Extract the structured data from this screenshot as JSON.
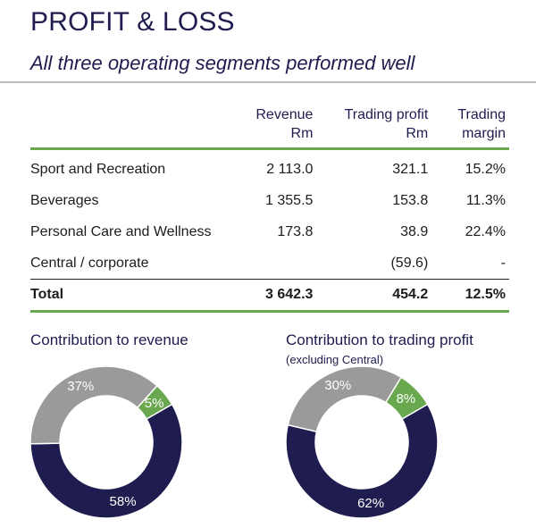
{
  "header": {
    "title": "PROFIT & LOSS",
    "subtitle": "All three operating segments performed well"
  },
  "table": {
    "columns": [
      "",
      "Revenue\nRm",
      "Trading profit\nRm",
      "Trading\nmargin"
    ],
    "rows": [
      {
        "segment": "Sport and Recreation",
        "revenue": "2 113.0",
        "profit": "321.1",
        "margin": "15.2%"
      },
      {
        "segment": "Beverages",
        "revenue": "1 355.5",
        "profit": "153.8",
        "margin": "11.3%"
      },
      {
        "segment": "Personal Care and Wellness",
        "revenue": "173.8",
        "profit": "38.9",
        "margin": "22.4%"
      },
      {
        "segment": "Central / corporate",
        "revenue": "",
        "profit": "(59.6)",
        "margin": "-"
      }
    ],
    "total": {
      "segment": "Total",
      "revenue": "3 642.3",
      "profit": "454.2",
      "margin": "12.5%"
    }
  },
  "chart_data": [
    {
      "type": "pie",
      "title": "Contribution to revenue",
      "subtitle": "",
      "slices": [
        {
          "label": "58%",
          "value": 58,
          "color": "#1f1c4f"
        },
        {
          "label": "37%",
          "value": 37,
          "color": "#9a9a9a"
        },
        {
          "label": "5%",
          "value": 5,
          "color": "#6aa84f"
        }
      ]
    },
    {
      "type": "pie",
      "title": "Contribution to trading profit",
      "subtitle": "(excluding Central)",
      "slices": [
        {
          "label": "62%",
          "value": 62,
          "color": "#1f1c4f"
        },
        {
          "label": "30%",
          "value": 30,
          "color": "#9a9a9a"
        },
        {
          "label": "8%",
          "value": 8,
          "color": "#6aa84f"
        }
      ]
    }
  ]
}
